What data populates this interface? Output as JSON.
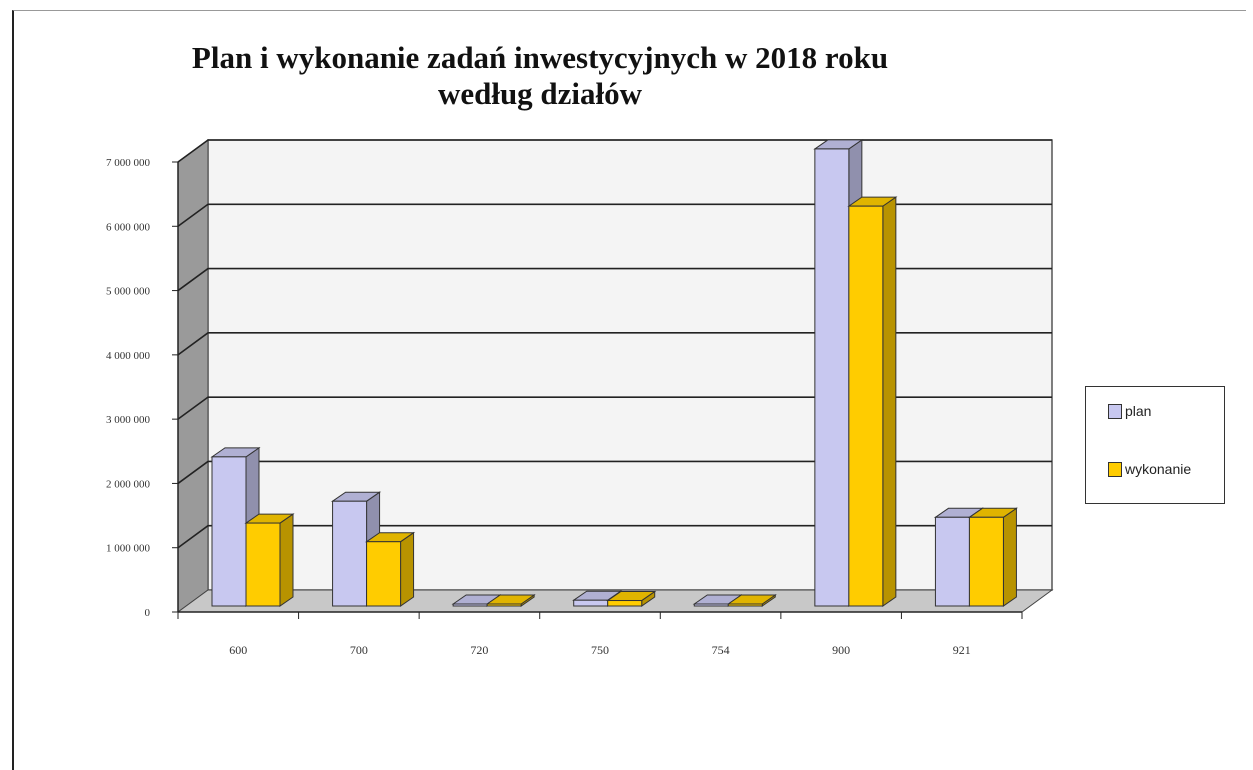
{
  "chart_data": {
    "type": "bar",
    "title_lines": [
      "Plan i wykonanie zadań inwestycyjnych w 2018 roku",
      "według działów"
    ],
    "categories": [
      "600",
      "700",
      "720",
      "750",
      "754",
      "900",
      "921"
    ],
    "series": [
      {
        "name": "plan",
        "values": [
          2320000,
          1630000,
          5000,
          90000,
          5000,
          7110000,
          1380000
        ],
        "color": "#c8c8f0"
      },
      {
        "name": "wykonanie",
        "values": [
          1290000,
          1000000,
          3000,
          85000,
          3000,
          6220000,
          1380000
        ],
        "color": "#ffcc00"
      }
    ],
    "yticks": [
      "0",
      "1 000 000",
      "2 000 000",
      "3 000 000",
      "4 000 000",
      "5 000 000",
      "6 000 000",
      "7 000 000"
    ],
    "ylim": [
      0,
      7000000
    ],
    "grid": true,
    "legend_position": "right",
    "three_d": true
  }
}
